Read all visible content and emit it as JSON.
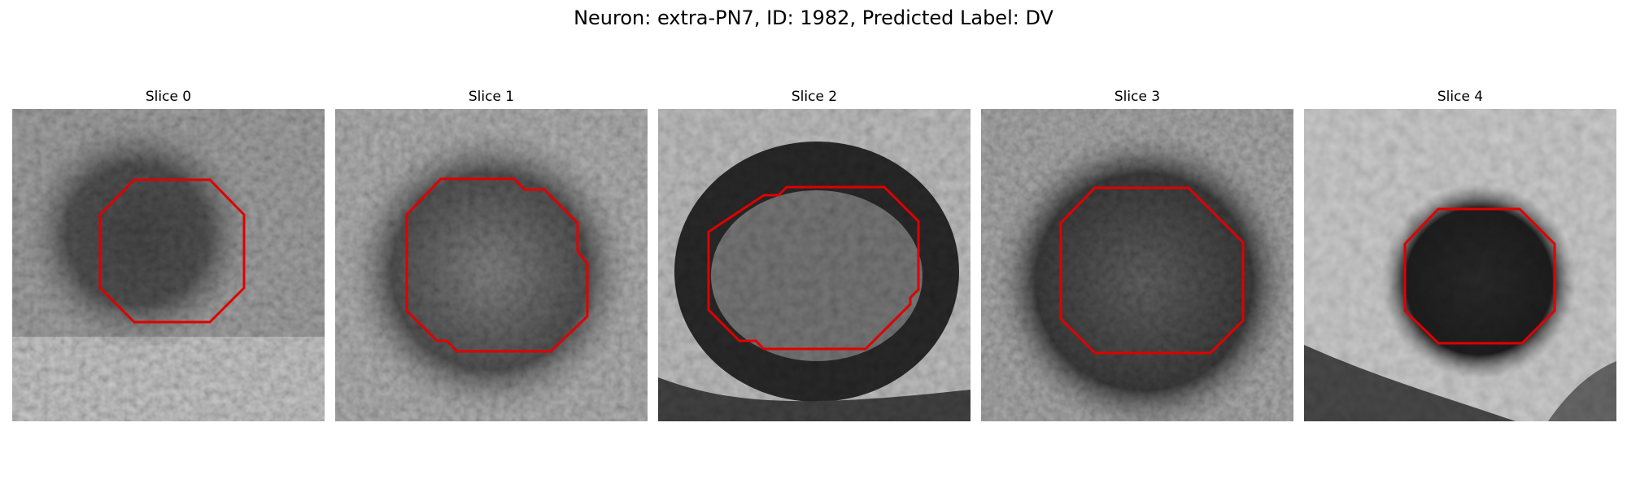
{
  "figure": {
    "title": "Neuron: extra-PN7, ID: 1982, Predicted Label: DV"
  },
  "panels": [
    {
      "title": "Slice 0",
      "contour_color": "#e00000"
    },
    {
      "title": "Slice 1",
      "contour_color": "#e00000"
    },
    {
      "title": "Slice 2",
      "contour_color": "#e00000"
    },
    {
      "title": "Slice 3",
      "contour_color": "#e00000"
    },
    {
      "title": "Slice 4",
      "contour_color": "#e00000"
    }
  ]
}
